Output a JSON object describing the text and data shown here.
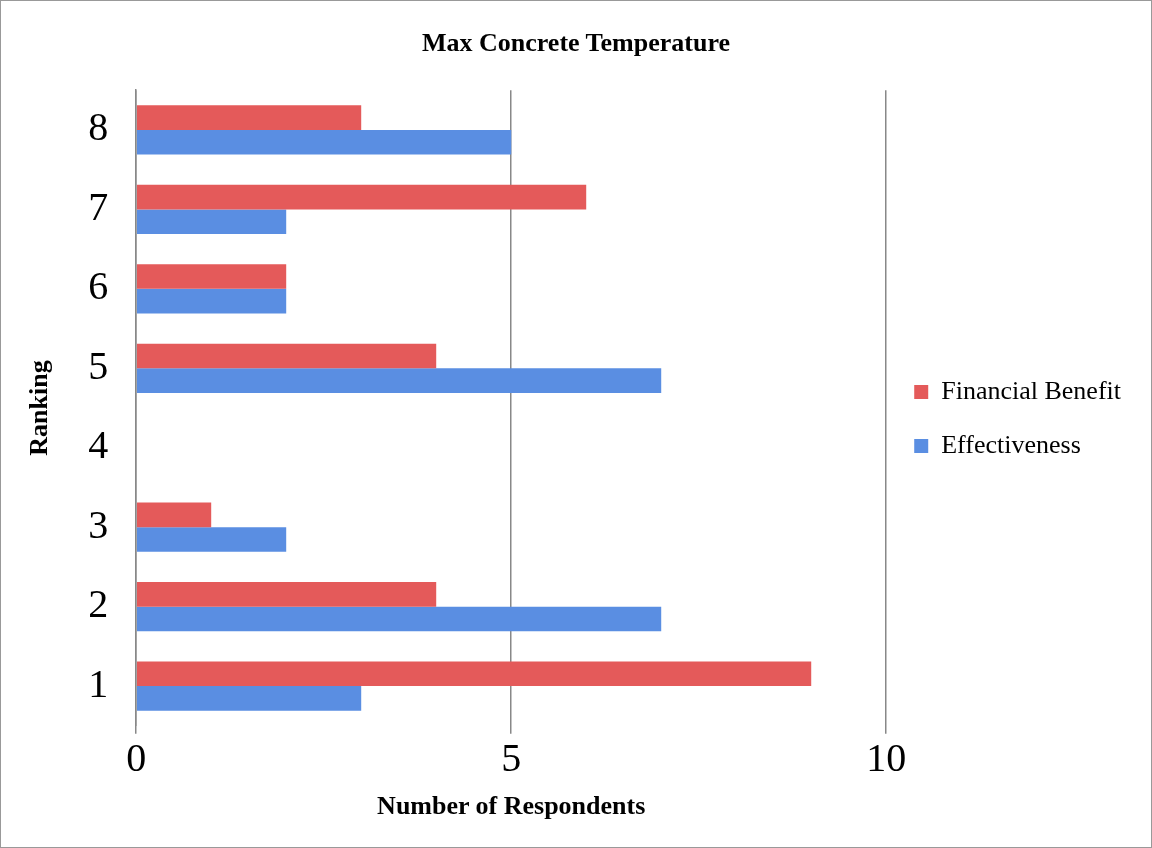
{
  "chart_data": {
    "type": "bar",
    "orientation": "horizontal",
    "title": "Max Concrete Temperature",
    "xlabel": "Number of Respondents",
    "ylabel": "Ranking",
    "categories": [
      "8",
      "7",
      "6",
      "5",
      "4",
      "3",
      "2",
      "1"
    ],
    "series": [
      {
        "name": "Financial Benefit",
        "color": "#e45a5a",
        "values": [
          3,
          6,
          2,
          4,
          0,
          1,
          4,
          9
        ]
      },
      {
        "name": "Effectiveness",
        "color": "#5a8ee2",
        "values": [
          5,
          2,
          2,
          7,
          0,
          2,
          7,
          3
        ]
      }
    ],
    "xlim": [
      0,
      10
    ],
    "xticks": [
      0,
      5,
      10
    ],
    "grid": "x",
    "legend": "right"
  }
}
